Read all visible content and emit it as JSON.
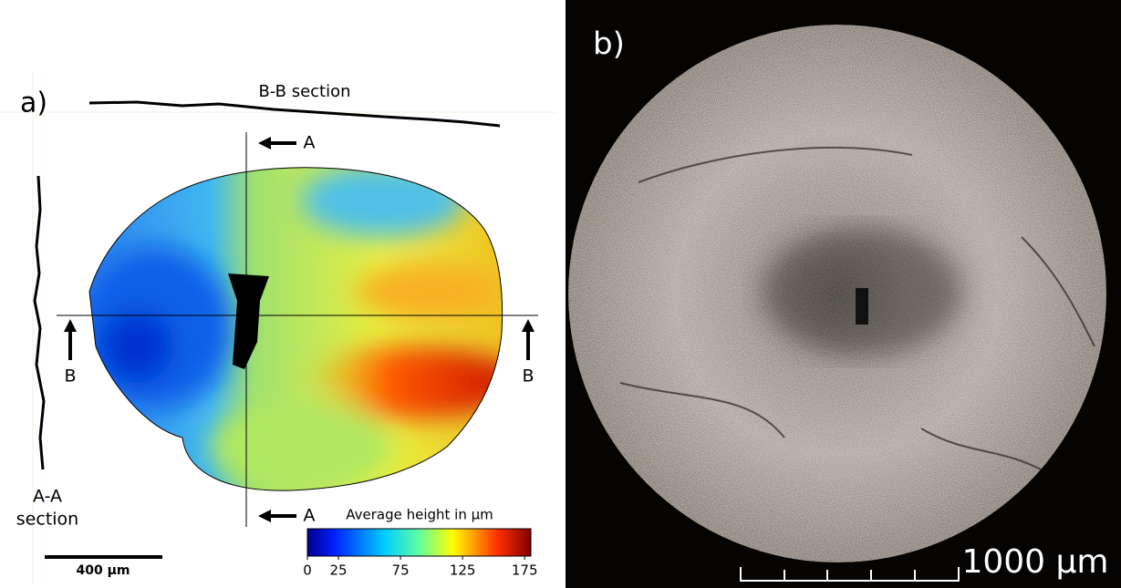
{
  "panel_a": {
    "label": "a)",
    "bb_section": "B-B section",
    "aa_section": [
      "A-A",
      "section"
    ],
    "section_marks": {
      "a_top": "A",
      "a_bottom": "A",
      "b_left": "B",
      "b_right": "B"
    },
    "colorbar": {
      "title": "Average height in µm",
      "lim": [
        0,
        180
      ],
      "ticks": [
        0,
        25,
        75,
        125,
        175
      ]
    },
    "scale_bar": "400 µm"
  },
  "panel_b": {
    "label": "b)",
    "scale_bar": "1000 µm"
  }
}
